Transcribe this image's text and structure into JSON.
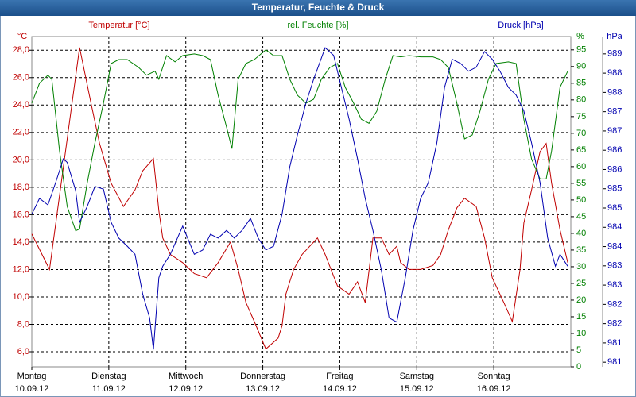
{
  "chart_data": {
    "type": "line",
    "title": "Temperatur, Feuchte & Druck",
    "y_unit": "°C",
    "y2_unit": "%",
    "y3_unit": "hPa",
    "xlim": [
      0,
      7
    ],
    "xticks": [
      {
        "value": 0,
        "label": "Montag",
        "date": "10.09.12"
      },
      {
        "value": 1,
        "label": "Dienstag",
        "date": "11.09.12"
      },
      {
        "value": 2,
        "label": "Mittwoch",
        "date": "12.09.12"
      },
      {
        "value": 3,
        "label": "Donnerstag",
        "date": "13.09.12"
      },
      {
        "value": 4,
        "label": "Freitag",
        "date": "14.09.12"
      },
      {
        "value": 5,
        "label": "Samstag",
        "date": "15.09.12"
      },
      {
        "value": 6,
        "label": "Sonntag",
        "date": "16.09.12"
      }
    ],
    "ylim": [
      4.9,
      29.0
    ],
    "yticks": [
      {
        "value": 6,
        "label": "6,0"
      },
      {
        "value": 8,
        "label": "8,0"
      },
      {
        "value": 10,
        "label": "10,0"
      },
      {
        "value": 12,
        "label": "12,0"
      },
      {
        "value": 14,
        "label": "14,0"
      },
      {
        "value": 16,
        "label": "16,0"
      },
      {
        "value": 18,
        "label": "18,0"
      },
      {
        "value": 20,
        "label": "20,0"
      },
      {
        "value": 22,
        "label": "22,0"
      },
      {
        "value": 24,
        "label": "24,0"
      },
      {
        "value": 26,
        "label": "26,0"
      },
      {
        "value": 28,
        "label": "28,0"
      }
    ],
    "y2lim": [
      0,
      99
    ],
    "y2ticks": [
      0,
      5,
      10,
      15,
      20,
      25,
      30,
      35,
      40,
      45,
      50,
      55,
      60,
      65,
      70,
      75,
      80,
      85,
      90,
      95
    ],
    "y3lim": [
      980.88,
      989.45
    ],
    "y3ticks": [
      {
        "value": 981,
        "label": "981"
      },
      {
        "value": 981.5,
        "label": "981"
      },
      {
        "value": 982,
        "label": "982"
      },
      {
        "value": 982.5,
        "label": "982"
      },
      {
        "value": 983,
        "label": "983"
      },
      {
        "value": 983.5,
        "label": "983"
      },
      {
        "value": 984,
        "label": "984"
      },
      {
        "value": 984.5,
        "label": "984"
      },
      {
        "value": 985,
        "label": "985"
      },
      {
        "value": 985.5,
        "label": "985"
      },
      {
        "value": 986,
        "label": "986"
      },
      {
        "value": 986.5,
        "label": "986"
      },
      {
        "value": 987,
        "label": "987"
      },
      {
        "value": 987.5,
        "label": "987"
      },
      {
        "value": 988,
        "label": "988"
      },
      {
        "value": 988.5,
        "label": "988"
      },
      {
        "value": 989,
        "label": "989"
      }
    ],
    "grid": true,
    "series": [
      {
        "name": "Temperatur [°C]",
        "color": "#c00000",
        "axis": "y",
        "x": [
          0,
          0.23,
          0.62,
          0.77,
          0.88,
          1.03,
          1.19,
          1.34,
          1.44,
          1.58,
          1.65,
          1.7,
          1.8,
          1.96,
          2.11,
          2.27,
          2.42,
          2.58,
          2.68,
          2.78,
          2.89,
          3.04,
          3.2,
          3.25,
          3.3,
          3.4,
          3.51,
          3.66,
          3.71,
          3.81,
          3.97,
          4.12,
          4.23,
          4.33,
          4.43,
          4.54,
          4.64,
          4.74,
          4.79,
          4.9,
          5.05,
          5.21,
          5.31,
          5.41,
          5.52,
          5.62,
          5.77,
          5.88,
          5.98,
          6.13,
          6.24,
          6.34,
          6.39,
          6.49,
          6.6,
          6.68,
          6.75,
          6.86,
          6.96
        ],
        "values": [
          14.6,
          12.0,
          28.2,
          24.1,
          21.2,
          18.3,
          16.6,
          17.8,
          19.2,
          20.1,
          16.3,
          14.3,
          13.1,
          12.5,
          11.7,
          11.4,
          12.5,
          14.0,
          12.0,
          9.6,
          8.2,
          6.2,
          7.0,
          7.9,
          10.2,
          12.0,
          13.1,
          14.0,
          14.3,
          13.1,
          10.8,
          10.2,
          11.1,
          9.6,
          14.3,
          14.3,
          13.1,
          13.7,
          12.5,
          12.0,
          12.0,
          12.3,
          13.1,
          14.9,
          16.5,
          17.2,
          16.6,
          14.3,
          11.4,
          9.6,
          8.2,
          12.0,
          15.4,
          17.8,
          20.6,
          21.2,
          18.3,
          14.9,
          12.5
        ]
      },
      {
        "name": "rel. Feuchte [%]",
        "color": "#008000",
        "axis": "y2",
        "x": [
          0,
          0.1,
          0.21,
          0.26,
          0.36,
          0.46,
          0.57,
          0.62,
          0.72,
          0.82,
          0.93,
          1.03,
          1.13,
          1.24,
          1.39,
          1.49,
          1.6,
          1.65,
          1.75,
          1.86,
          1.96,
          2.11,
          2.22,
          2.32,
          2.42,
          2.53,
          2.6,
          2.68,
          2.78,
          2.89,
          3.04,
          3.14,
          3.25,
          3.35,
          3.45,
          3.56,
          3.66,
          3.76,
          3.87,
          3.97,
          4.07,
          4.18,
          4.28,
          4.38,
          4.48,
          4.59,
          4.69,
          4.79,
          4.9,
          5.05,
          5.21,
          5.31,
          5.41,
          5.52,
          5.62,
          5.72,
          5.82,
          5.93,
          6.03,
          6.19,
          6.29,
          6.39,
          6.49,
          6.6,
          6.68,
          6.75,
          6.86,
          6.96
        ],
        "values": [
          79.0,
          85.0,
          87.4,
          86.2,
          64.7,
          48.0,
          40.8,
          41.3,
          55.1,
          67.1,
          79.0,
          90.9,
          92.1,
          92.1,
          89.7,
          87.4,
          88.6,
          86.2,
          93.3,
          91.4,
          93.3,
          93.8,
          93.3,
          92.1,
          81.4,
          71.8,
          65.4,
          86.2,
          90.9,
          92.1,
          95.0,
          93.3,
          93.3,
          86.2,
          81.4,
          79.0,
          80.2,
          86.2,
          89.7,
          90.9,
          83.8,
          79.0,
          74.2,
          73.0,
          76.6,
          86.2,
          93.3,
          92.9,
          93.3,
          92.9,
          92.9,
          92.1,
          89.7,
          79.0,
          68.3,
          69.5,
          76.6,
          86.2,
          90.9,
          91.4,
          90.9,
          74.2,
          62.3,
          56.3,
          56.3,
          64.7,
          83.8,
          88.6
        ]
      },
      {
        "name": "Druck [hPa]",
        "color": "#0000b0",
        "axis": "y3",
        "x": [
          0,
          0.1,
          0.21,
          0.31,
          0.41,
          0.46,
          0.57,
          0.62,
          0.72,
          0.82,
          0.93,
          1.03,
          1.13,
          1.24,
          1.34,
          1.44,
          1.53,
          1.58,
          1.65,
          1.7,
          1.8,
          1.96,
          2.11,
          2.22,
          2.32,
          2.42,
          2.53,
          2.63,
          2.73,
          2.84,
          2.94,
          3.04,
          3.14,
          3.25,
          3.35,
          3.45,
          3.56,
          3.66,
          3.81,
          3.92,
          4.02,
          4.12,
          4.23,
          4.33,
          4.43,
          4.54,
          4.64,
          4.74,
          4.85,
          4.95,
          5.05,
          5.15,
          5.26,
          5.36,
          5.46,
          5.57,
          5.67,
          5.77,
          5.88,
          5.98,
          6.08,
          6.19,
          6.29,
          6.39,
          6.49,
          6.6,
          6.7,
          6.8,
          6.86,
          6.96
        ],
        "values": [
          984.84,
          985.25,
          985.08,
          985.66,
          986.28,
          986.18,
          985.45,
          984.63,
          985.04,
          985.56,
          985.49,
          984.63,
          984.22,
          984.01,
          983.8,
          982.77,
          982.15,
          981.33,
          983.19,
          983.49,
          983.8,
          984.53,
          983.8,
          983.91,
          984.32,
          984.22,
          984.42,
          984.22,
          984.42,
          984.73,
          984.22,
          983.91,
          984.01,
          984.84,
          986.07,
          986.9,
          987.72,
          988.34,
          989.16,
          988.96,
          988.13,
          987.31,
          986.28,
          985.25,
          984.42,
          983.39,
          982.15,
          982.04,
          983.19,
          984.42,
          985.25,
          985.66,
          986.69,
          988.13,
          988.86,
          988.75,
          988.55,
          988.65,
          989.06,
          988.86,
          988.55,
          988.13,
          987.93,
          987.52,
          986.69,
          985.66,
          984.22,
          983.49,
          983.8,
          983.49
        ]
      }
    ]
  }
}
